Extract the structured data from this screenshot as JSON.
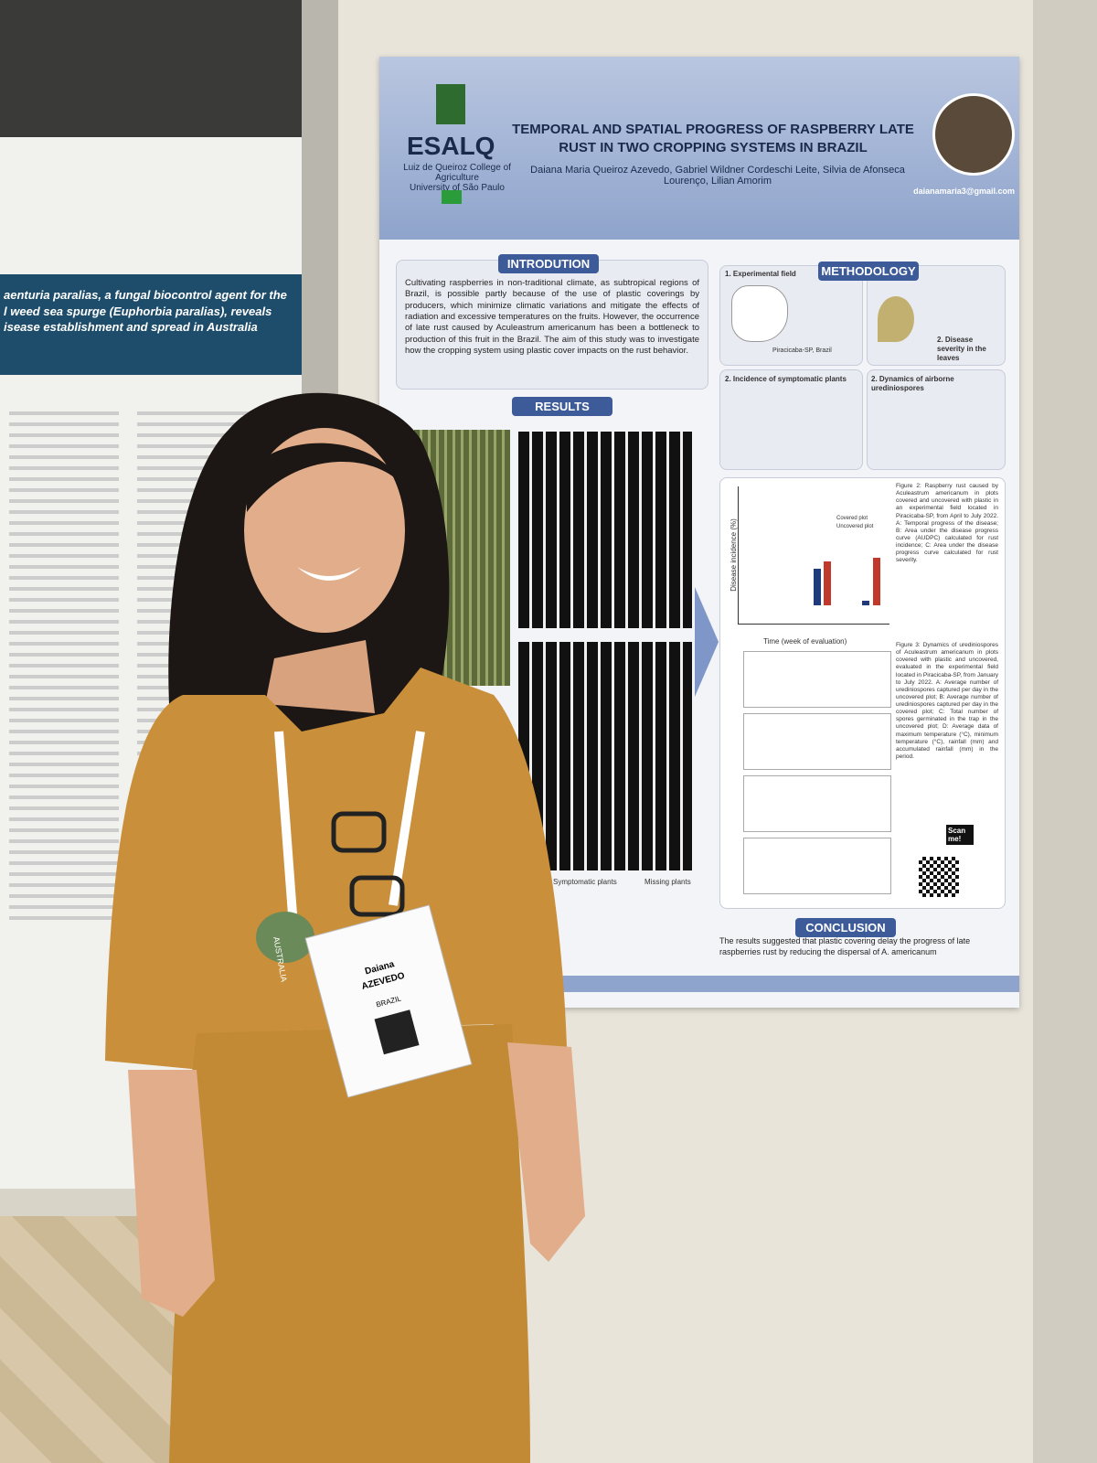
{
  "left_poster": {
    "title_lines": [
      "aenturia paralias, a fungal biocontrol agent for the",
      "l weed sea spurge (Euphorbia paralias), reveals",
      "isease establishment and spread in Australia"
    ]
  },
  "poster": {
    "institution": {
      "logo": "ESALQ",
      "name": "Luiz de Queiroz College of Agriculture",
      "university": "University of São Paulo"
    },
    "title": "TEMPORAL AND SPATIAL PROGRESS OF RASPBERRY LATE RUST IN TWO CROPPING SYSTEMS IN BRAZIL",
    "authors": "Daiana Maria Queiroz Azevedo, Gabriel Wildner Cordeschi Leite, Silvia de Afonseca Lourenço, Lilian Amorim",
    "email": "daianamaria3@gmail.com",
    "introduction": {
      "heading": "INTRODUTION",
      "text": "Cultivating raspberries in non-traditional climate, as subtropical regions of Brazil, is possible partly because of the use of plastic coverings by producers, which minimize climatic variations and mitigate the effects of radiation and excessive temperatures on the fruits. However, the occurrence of late rust caused by Aculeastrum americanum has been a bottleneck to production of this fruit in the Brazil. The aim of this study was to investigate how the cropping system using plastic cover impacts on the rust behavior."
    },
    "results": {
      "heading": "RESULTS",
      "legend": [
        "Symptomatic plants",
        "Missing plants"
      ]
    },
    "methodology": {
      "heading": "METHODOLOGY",
      "items": [
        "1. Experimental field",
        "2. Disease severity in the leaves",
        "2. Incidence of symptomatic plants",
        "2. Dynamics of airborne urediniospores"
      ],
      "map_label": "Piracicaba-SP, Brazil"
    },
    "figure2": {
      "y_label": "Disease incidence (%)",
      "x_label": "Time (week of evaluation)",
      "legend": [
        "Covered plot",
        "Uncovered plot"
      ],
      "caption": "Figure 2: Raspberry rust caused by Aculeastrum americanum in plots covered and uncovered with plastic in an experimental field located in Piracicaba-SP, from April to July 2022. A: Temporal progress of the disease; B: Area under the disease progress curve (AUDPC) calculated for rust incidence; C: Area under the disease progress curve calculated for rust severity."
    },
    "figure3": {
      "caption": "Figure 3: Dynamics of urediniospores of Aculeastrum americanum in plots covered with plastic and uncovered, evaluated in the experimental field located in Piracicaba-SP, from January to July 2022. A: Average number of urediniospores captured per day in the uncovered plot; B: Average number of urediniospores captured per day in the covered plot; C: Total number of spores germinated in the trap in the uncovered plot; D: Average data of maximum temperature (°C), minimum temperature (°C), rainfall (mm) and accumulated rainfall (mm) in the period."
    },
    "scan": "Scan me!",
    "conclusion": {
      "heading": "CONCLUSION",
      "text": "The results suggested that plastic covering delay the progress of late raspberries rust by reducing the dispersal of A. americanum"
    }
  },
  "pin": "AUSTRALIA",
  "badge": {
    "name": "Daiana",
    "surname": "AZEVEDO",
    "country": "BRAZIL"
  }
}
